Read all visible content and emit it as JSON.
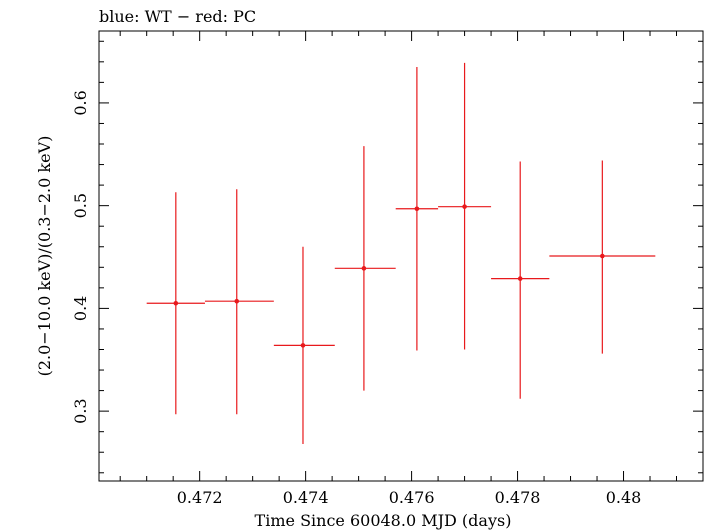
{
  "chart_data": {
    "type": "scatter",
    "title": "blue: WT − red: PC",
    "xlabel": "Time Since 60048.0 MJD (days)",
    "ylabel": "(2.0−10.0 keV)/(0.3−2.0 keV)",
    "xlim": [
      0.4701,
      0.4815
    ],
    "ylim": [
      0.232,
      0.67
    ],
    "xticks": [
      0.472,
      0.474,
      0.476,
      0.478,
      0.48
    ],
    "xtick_labels": [
      "0.472",
      "0.474",
      "0.476",
      "0.478",
      "0.48"
    ],
    "xtick_minor": 0.0005,
    "yticks": [
      0.3,
      0.4,
      0.5,
      0.6
    ],
    "ytick_labels": [
      "0.3",
      "0.4",
      "0.5",
      "0.6"
    ],
    "ytick_minor": 0.02,
    "grid": false,
    "series": [
      {
        "color": "#e8191c",
        "points": [
          {
            "x": 0.47155,
            "y": 0.405,
            "xlo": 0.471,
            "xhi": 0.4721,
            "ylo": 0.297,
            "yhi": 0.513
          },
          {
            "x": 0.4727,
            "y": 0.407,
            "xlo": 0.4721,
            "xhi": 0.4734,
            "ylo": 0.297,
            "yhi": 0.516
          },
          {
            "x": 0.47395,
            "y": 0.364,
            "xlo": 0.4734,
            "xhi": 0.47455,
            "ylo": 0.268,
            "yhi": 0.46
          },
          {
            "x": 0.4751,
            "y": 0.439,
            "xlo": 0.47455,
            "xhi": 0.4757,
            "ylo": 0.32,
            "yhi": 0.558
          },
          {
            "x": 0.4761,
            "y": 0.497,
            "xlo": 0.4757,
            "xhi": 0.4765,
            "ylo": 0.359,
            "yhi": 0.635
          },
          {
            "x": 0.477,
            "y": 0.499,
            "xlo": 0.4765,
            "xhi": 0.4775,
            "ylo": 0.36,
            "yhi": 0.639
          },
          {
            "x": 0.47805,
            "y": 0.429,
            "xlo": 0.4775,
            "xhi": 0.4786,
            "ylo": 0.312,
            "yhi": 0.543
          },
          {
            "x": 0.4796,
            "y": 0.451,
            "xlo": 0.4786,
            "xhi": 0.4806,
            "ylo": 0.356,
            "yhi": 0.544
          }
        ]
      }
    ]
  }
}
